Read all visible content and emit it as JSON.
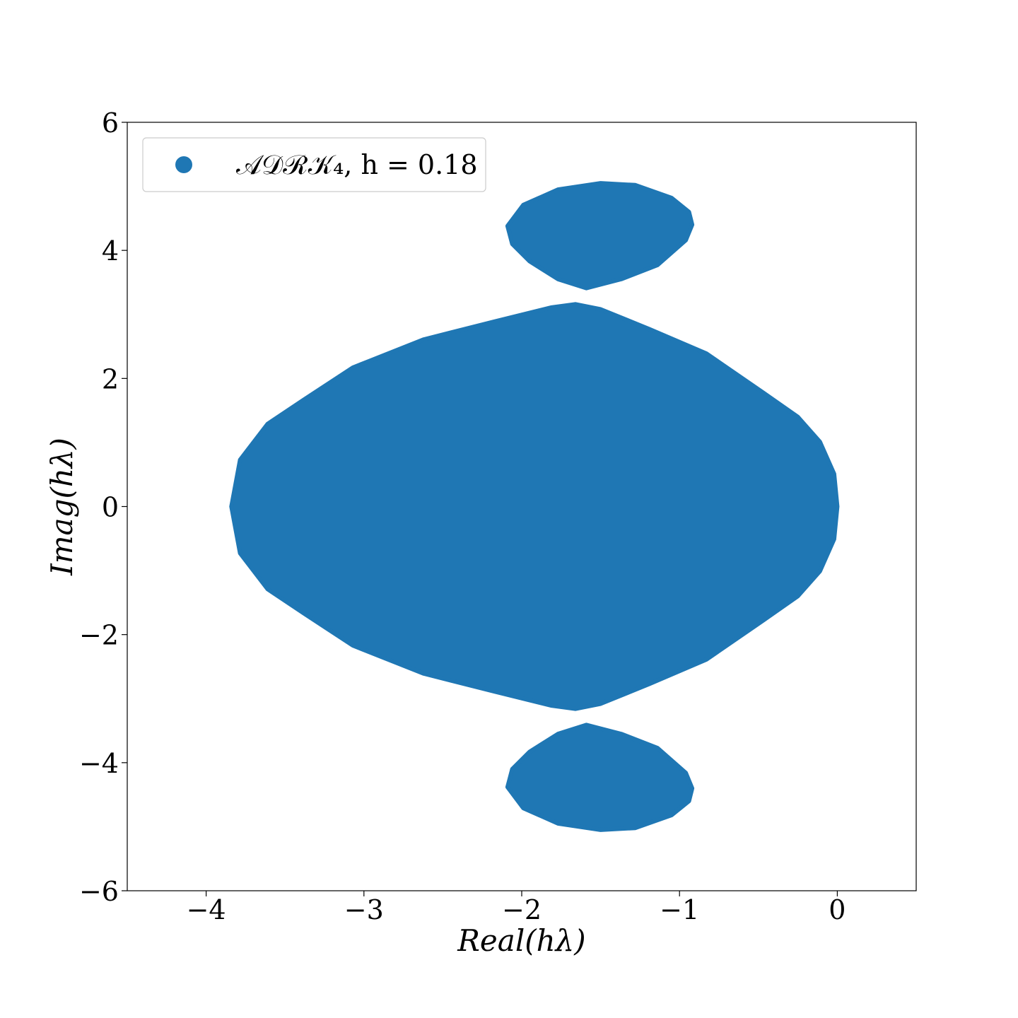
{
  "chart_data": {
    "type": "scatter",
    "xlabel": "Real(hλ)",
    "ylabel": "Imag(hλ)",
    "xlim": [
      -4.5,
      0.5
    ],
    "ylim": [
      -6,
      6
    ],
    "xticks": [
      {
        "value": -4,
        "label": "−4"
      },
      {
        "value": -3,
        "label": "−3"
      },
      {
        "value": -2,
        "label": "−2"
      },
      {
        "value": -1,
        "label": "−1"
      },
      0
    ],
    "yticks": [
      {
        "value": -6,
        "label": "−6"
      },
      {
        "value": -4,
        "label": "−4"
      },
      {
        "value": -2,
        "label": "−2"
      },
      0,
      2,
      4,
      6
    ],
    "legend": "upper left",
    "series": [
      {
        "name": "𝒜𝒟ℛ𝒦₄, h = 0.18",
        "color": "#1f77b4",
        "x": [
          -3.84,
          -3.785,
          -3.61,
          -3.38,
          -3.07,
          -2.62,
          -2.17,
          -1.81,
          -1.66,
          -1.5,
          -1.19,
          -0.83,
          -0.47,
          -0.25,
          -0.11,
          -0.02,
          0.0,
          -0.02,
          -0.11,
          -0.25,
          -0.47,
          -0.83,
          -1.19,
          -1.5,
          -1.66,
          -1.81,
          -2.17,
          -2.62,
          -3.07,
          -3.38,
          -3.61,
          -3.785,
          null,
          -2.09,
          -1.99,
          -1.77,
          -1.5,
          -1.28,
          -1.05,
          -0.94,
          -0.92,
          -0.96,
          -1.14,
          -1.37,
          -1.59,
          -1.77,
          -1.95,
          -2.06,
          null,
          -2.09,
          -1.99,
          -1.77,
          -1.5,
          -1.28,
          -1.05,
          -0.94,
          -0.92,
          -0.96,
          -1.14,
          -1.37,
          -1.59,
          -1.77,
          -1.95,
          -2.06
        ],
        "y": [
          0,
          0.73,
          1.29,
          1.67,
          2.17,
          2.61,
          2.89,
          3.11,
          3.16,
          3.08,
          2.77,
          2.39,
          1.78,
          1.4,
          1.01,
          0.51,
          0,
          -0.51,
          -1.01,
          -1.4,
          -1.78,
          -2.39,
          -2.77,
          -3.08,
          -3.16,
          -3.11,
          -2.89,
          -2.61,
          -2.17,
          -1.67,
          -1.29,
          -0.73,
          null,
          4.38,
          4.71,
          4.95,
          5.05,
          5.02,
          4.82,
          4.6,
          4.4,
          4.16,
          3.77,
          3.55,
          3.41,
          3.55,
          3.83,
          4.1,
          null,
          -4.38,
          -4.71,
          -4.95,
          -5.05,
          -5.02,
          -4.82,
          -4.6,
          -4.4,
          -4.16,
          -3.77,
          -3.55,
          -3.41,
          -3.55,
          -3.83,
          -4.1
        ]
      }
    ]
  }
}
